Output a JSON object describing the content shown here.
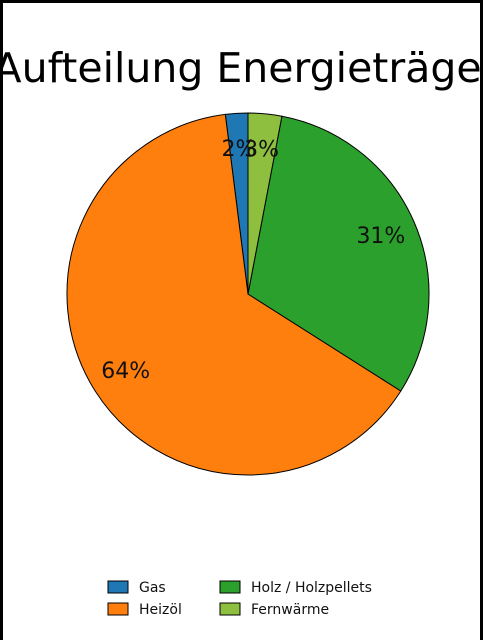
{
  "chart_data": {
    "type": "pie",
    "title": "Aufteilung Energieträger",
    "slices": [
      {
        "label": "Gas",
        "value": 2,
        "pct_label": "2%",
        "color": "#1f77b4"
      },
      {
        "label": "Heizöl",
        "value": 64,
        "pct_label": "64%",
        "color": "#ff7f0e"
      },
      {
        "label": "Holz / Holzpellets",
        "value": 31,
        "pct_label": "31%",
        "color": "#2ca02c"
      },
      {
        "label": "Fernwärme",
        "value": 3,
        "pct_label": "3%",
        "color": "#8fbf3f"
      }
    ],
    "start_angle_deg": 90,
    "direction": "counterclockwise",
    "legend_position": "bottom-center"
  }
}
